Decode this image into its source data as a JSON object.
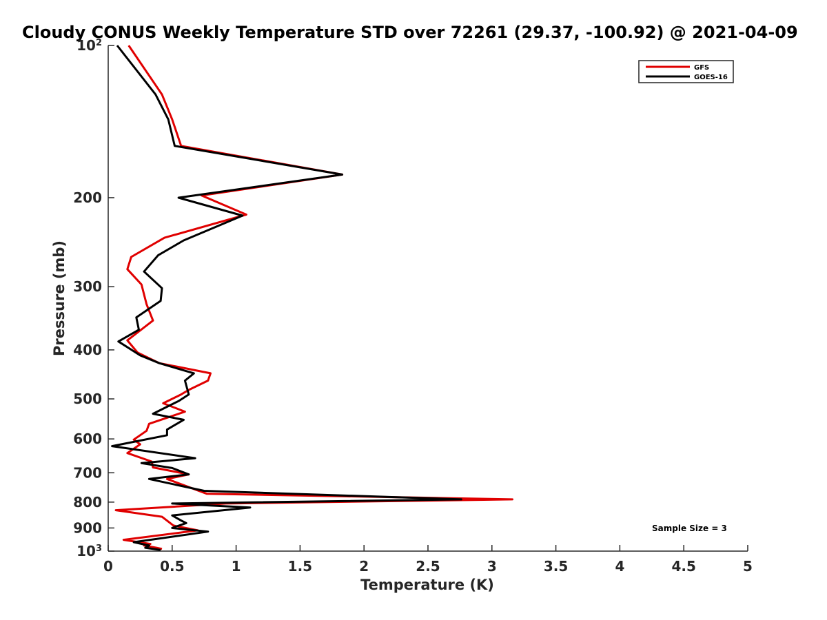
{
  "chart_data": {
    "type": "line",
    "title": "Cloudy CONUS Weekly Temperature STD over 72261 (29.37, -100.92) @ 2021-04-09",
    "xlabel": "Temperature (K)",
    "ylabel": "Pressure (mb)",
    "xlim": [
      0,
      5
    ],
    "ylim": [
      100,
      1000
    ],
    "yscale": "log",
    "y_reversed": true,
    "x_ticks": [
      "0",
      "0.5",
      "1",
      "1.5",
      "2",
      "2.5",
      "3",
      "3.5",
      "4",
      "4.5",
      "5"
    ],
    "y_ticks": [
      {
        "value": 100,
        "base": "10",
        "exp": "2"
      },
      {
        "value": 200,
        "label": "200"
      },
      {
        "value": 300,
        "label": "300"
      },
      {
        "value": 400,
        "label": "400"
      },
      {
        "value": 500,
        "label": "500"
      },
      {
        "value": 600,
        "label": "600"
      },
      {
        "value": 700,
        "label": "700"
      },
      {
        "value": 800,
        "label": "800"
      },
      {
        "value": 900,
        "label": "900"
      },
      {
        "value": 1000,
        "base": "10",
        "exp": "3"
      }
    ],
    "grid": false,
    "legend_position": "top-right",
    "annotation": "Sample Size = 3",
    "series": [
      {
        "name": "GFS",
        "color": "#e00000",
        "points": [
          [
            0.16,
            100
          ],
          [
            0.42,
            125
          ],
          [
            0.5,
            140
          ],
          [
            0.57,
            158
          ],
          [
            1.83,
            180
          ],
          [
            0.73,
            198
          ],
          [
            1.08,
            216
          ],
          [
            0.44,
            240
          ],
          [
            0.18,
            262
          ],
          [
            0.15,
            277
          ],
          [
            0.26,
            297
          ],
          [
            0.3,
            325
          ],
          [
            0.35,
            350
          ],
          [
            0.15,
            383
          ],
          [
            0.23,
            405
          ],
          [
            0.4,
            425
          ],
          [
            0.8,
            445
          ],
          [
            0.78,
            460
          ],
          [
            0.63,
            480
          ],
          [
            0.57,
            490
          ],
          [
            0.43,
            510
          ],
          [
            0.6,
            530
          ],
          [
            0.32,
            560
          ],
          [
            0.3,
            578
          ],
          [
            0.2,
            602
          ],
          [
            0.25,
            615
          ],
          [
            0.15,
            640
          ],
          [
            0.34,
            665
          ],
          [
            0.35,
            683
          ],
          [
            0.63,
            705
          ],
          [
            0.46,
            720
          ],
          [
            0.77,
            770
          ],
          [
            3.16,
            790
          ],
          [
            0.92,
            805
          ],
          [
            0.06,
            830
          ],
          [
            0.42,
            855
          ],
          [
            0.51,
            890
          ],
          [
            0.7,
            910
          ],
          [
            0.12,
            950
          ],
          [
            0.33,
            968
          ],
          [
            0.28,
            975
          ],
          [
            0.38,
            985
          ],
          [
            0.42,
            990
          ]
        ]
      },
      {
        "name": "GOES-16",
        "color": "#000000",
        "points": [
          [
            0.07,
            100
          ],
          [
            0.37,
            125
          ],
          [
            0.47,
            140
          ],
          [
            0.52,
            158
          ],
          [
            1.83,
            180
          ],
          [
            0.55,
            200
          ],
          [
            1.05,
            217
          ],
          [
            0.59,
            243
          ],
          [
            0.39,
            260
          ],
          [
            0.28,
            280
          ],
          [
            0.42,
            302
          ],
          [
            0.41,
            320
          ],
          [
            0.22,
            345
          ],
          [
            0.24,
            365
          ],
          [
            0.08,
            385
          ],
          [
            0.25,
            410
          ],
          [
            0.4,
            425
          ],
          [
            0.67,
            445
          ],
          [
            0.6,
            460
          ],
          [
            0.63,
            490
          ],
          [
            0.55,
            505
          ],
          [
            0.35,
            535
          ],
          [
            0.59,
            550
          ],
          [
            0.46,
            575
          ],
          [
            0.46,
            590
          ],
          [
            0.03,
            620
          ],
          [
            0.68,
            655
          ],
          [
            0.26,
            670
          ],
          [
            0.5,
            685
          ],
          [
            0.63,
            705
          ],
          [
            0.32,
            720
          ],
          [
            0.75,
            760
          ],
          [
            2.76,
            790
          ],
          [
            0.5,
            805
          ],
          [
            1.11,
            820
          ],
          [
            0.5,
            850
          ],
          [
            0.57,
            870
          ],
          [
            0.61,
            880
          ],
          [
            0.5,
            900
          ],
          [
            0.78,
            915
          ],
          [
            0.2,
            960
          ],
          [
            0.32,
            975
          ],
          [
            0.29,
            985
          ],
          [
            0.41,
            995
          ]
        ]
      }
    ]
  }
}
